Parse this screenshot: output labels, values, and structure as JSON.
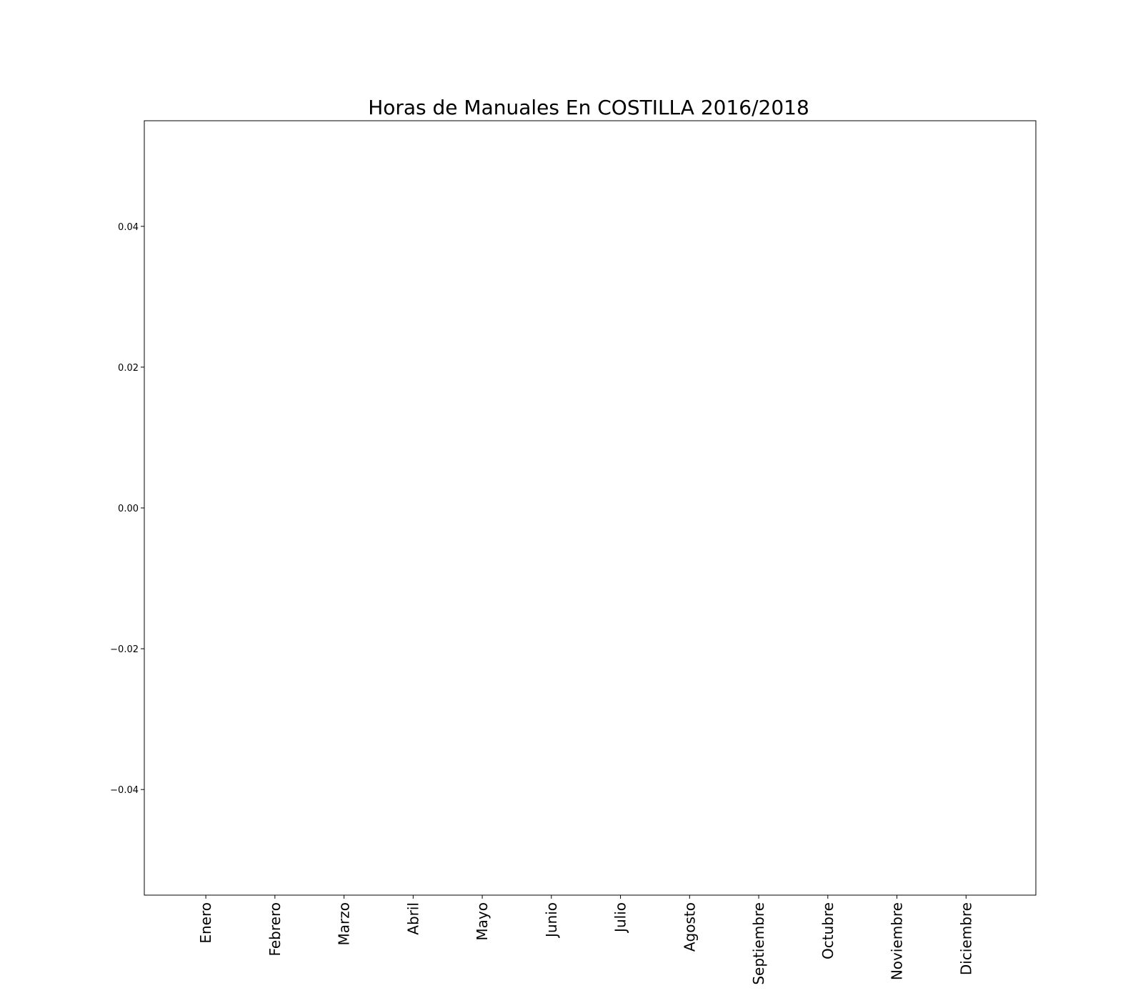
{
  "chart_data": {
    "type": "bar",
    "title": "Horas de Manuales En COSTILLA 2016/2018",
    "xlabel": "",
    "ylabel": "",
    "categories": [
      "Enero",
      "Febrero",
      "Marzo",
      "Abril",
      "Mayo",
      "Junio",
      "Julio",
      "Agosto",
      "Septiembre",
      "Octubre",
      "Noviembre",
      "Diciembre"
    ],
    "series": [],
    "ylim": [
      -0.055,
      0.055
    ],
    "yticks": [
      -0.04,
      -0.02,
      0.0,
      0.02,
      0.04
    ],
    "ytick_labels": [
      "−0.04",
      "−0.02",
      "0.00",
      "0.02",
      "0.04"
    ],
    "grid": false,
    "legend": "none"
  }
}
